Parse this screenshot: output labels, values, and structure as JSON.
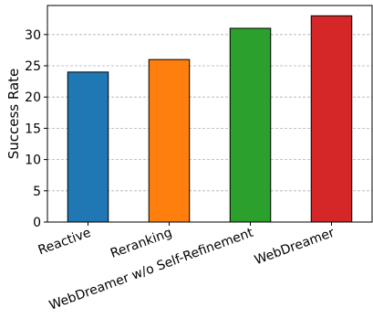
{
  "chart_data": {
    "type": "bar",
    "categories": [
      "Reactive",
      "Reranking",
      "WebDreamer w/o Self-Refinement",
      "WebDreamer"
    ],
    "values": [
      24,
      26,
      31,
      33
    ],
    "colors": [
      "#1f77b4",
      "#ff7f0e",
      "#2ca02c",
      "#d62728"
    ],
    "title": "",
    "xlabel": "",
    "ylabel": "Success Rate",
    "ylim": [
      0,
      34.65
    ],
    "yticks": [
      0,
      5,
      10,
      15,
      20,
      25,
      30
    ],
    "grid": "y-dashed",
    "x_tick_rotation": 20
  }
}
